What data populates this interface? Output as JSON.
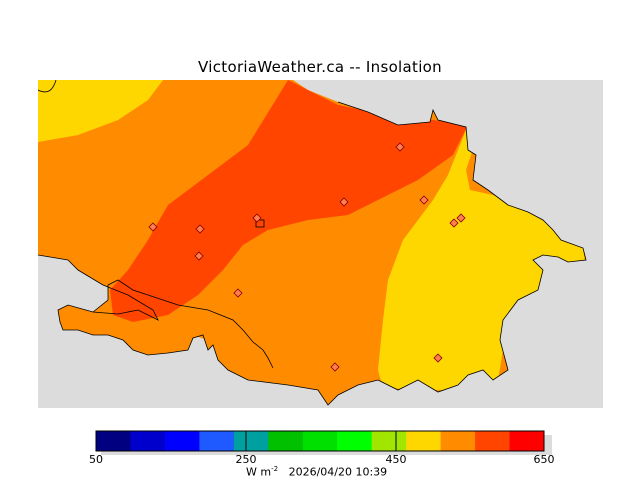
{
  "title": "VictoriaWeather.ca -- Insolation",
  "units": "W m",
  "units_exp": "-2",
  "timestamp": "2026/04/20 10:39",
  "legend": {
    "min": 50,
    "max": 650,
    "ticks": [
      "50",
      "250",
      "450",
      "650"
    ],
    "colors": [
      "#000080",
      "#0000cd",
      "#0000ff",
      "#1e5aff",
      "#1e90ff",
      "#00a0a0",
      "#00c000",
      "#00e000",
      "#00ff00",
      "#a0e600",
      "#ffd700",
      "#ff8c00",
      "#ff4500",
      "#ff0000"
    ]
  },
  "zone_colors": {
    "land_background": "#dcdcdc",
    "z_450_500": "#ffd700",
    "z_500_550": "#ff8c00",
    "z_550_600": "#ff4500"
  },
  "stations": 12
}
